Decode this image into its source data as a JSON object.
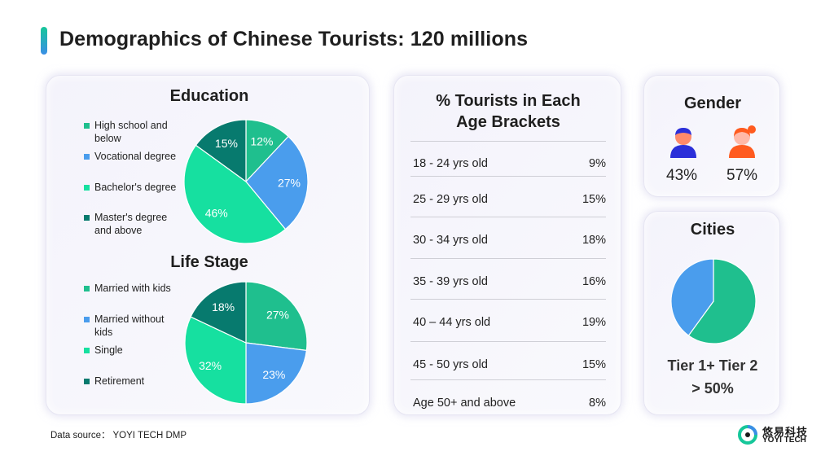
{
  "page": {
    "title": "Demographics of Chinese Tourists: 120 millions",
    "footer": "Data source： YOYI TECH DMP",
    "logo_cn": "悠易科技",
    "logo_en": "YOYI TECH"
  },
  "colors": {
    "green": "#1fbf8e",
    "blue": "#4a9ded",
    "mint": "#16e0a0",
    "teal": "#077a6e",
    "male": "#2b2fd9",
    "female": "#ff5b1f"
  },
  "education": {
    "title": "Education"
  },
  "life_stage": {
    "title": "Life Stage"
  },
  "age": {
    "title_line1": "% Tourists in Each",
    "title_line2": "Age Brackets",
    "rows": [
      {
        "label": "18 - 24 yrs old",
        "value": "9%"
      },
      {
        "label": "25 - 29 yrs old",
        "value": "15%"
      },
      {
        "label": "30 - 34 yrs old",
        "value": "18%"
      },
      {
        "label": "35 - 39 yrs old",
        "value": "16%"
      },
      {
        "label": "40 – 44 yrs old",
        "value": "19%"
      },
      {
        "label": "45 - 50 yrs old",
        "value": "15%"
      },
      {
        "label": "Age 50+ and above",
        "value": "8%"
      }
    ]
  },
  "gender": {
    "title": "Gender",
    "male_icon": "male-person-icon",
    "female_icon": "female-person-icon",
    "male_pct": "43%",
    "female_pct": "57%"
  },
  "cities": {
    "title": "Cities",
    "caption_line1": "Tier 1+ Tier 2",
    "caption_line2": "> 50%"
  },
  "chart_data": [
    {
      "type": "pie",
      "title": "Education",
      "categories": [
        "High school and below",
        "Vocational degree",
        "Bachelor's degree",
        "Master's degree and above"
      ],
      "values": [
        12,
        27,
        46,
        15
      ],
      "labels": [
        "12%",
        "27%",
        "46%",
        "15%"
      ],
      "colors": [
        "#1fbf8e",
        "#4a9ded",
        "#16e0a0",
        "#077a6e"
      ],
      "legend": "left"
    },
    {
      "type": "pie",
      "title": "Life Stage",
      "categories": [
        "Married with kids",
        "Married without kids",
        "Single",
        "Retirement"
      ],
      "values": [
        27,
        23,
        32,
        18
      ],
      "labels": [
        "27%",
        "23%",
        "32%",
        "18%"
      ],
      "colors": [
        "#1fbf8e",
        "#4a9ded",
        "#16e0a0",
        "#077a6e"
      ],
      "legend": "left"
    },
    {
      "type": "table",
      "title": "% Tourists in Each Age Brackets",
      "categories": [
        "18 - 24 yrs old",
        "25 - 29 yrs old",
        "30 - 34 yrs old",
        "35 - 39 yrs old",
        "40 – 44 yrs old",
        "45 - 50 yrs old",
        "Age 50+ and above"
      ],
      "values": [
        9,
        15,
        18,
        16,
        19,
        15,
        8
      ]
    },
    {
      "type": "pie",
      "title": "Cities",
      "categories": [
        "",
        ""
      ],
      "values": [
        60,
        40
      ],
      "colors": [
        "#1fbf8e",
        "#4a9ded"
      ]
    }
  ]
}
